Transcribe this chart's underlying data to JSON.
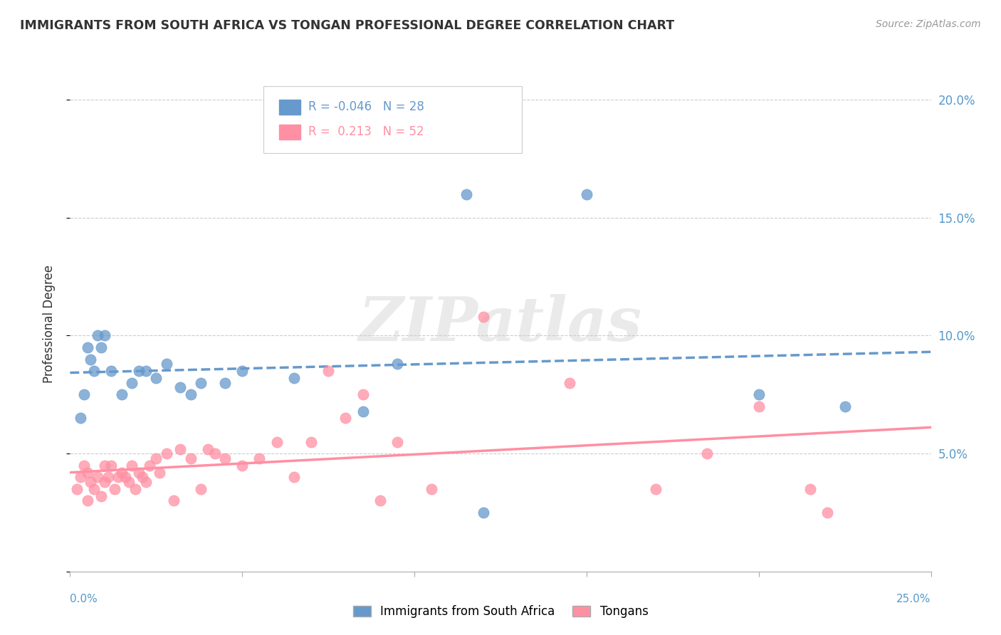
{
  "title": "IMMIGRANTS FROM SOUTH AFRICA VS TONGAN PROFESSIONAL DEGREE CORRELATION CHART",
  "source": "Source: ZipAtlas.com",
  "ylabel": "Professional Degree",
  "watermark": "ZIPatlas",
  "xlim": [
    0.0,
    25.0
  ],
  "ylim": [
    0.0,
    21.0
  ],
  "ytick_values": [
    0,
    5,
    10,
    15,
    20
  ],
  "ytick_labels": [
    "",
    "5.0%",
    "10.0%",
    "15.0%",
    "20.0%"
  ],
  "series1_name": "Immigrants from South Africa",
  "series1_color": "#6699cc",
  "series1_R": -0.046,
  "series1_N": 28,
  "series1_x": [
    0.3,
    0.5,
    0.7,
    0.9,
    1.0,
    1.2,
    1.5,
    1.8,
    2.0,
    2.2,
    2.5,
    2.8,
    3.2,
    3.5,
    3.8,
    4.5,
    5.0,
    6.5,
    8.5,
    9.5,
    11.5,
    15.0,
    20.0,
    22.5,
    12.0,
    0.4,
    0.6,
    0.8
  ],
  "series1_y": [
    6.5,
    9.5,
    8.5,
    9.5,
    10.0,
    8.5,
    7.5,
    8.0,
    8.5,
    8.5,
    8.2,
    8.8,
    7.8,
    7.5,
    8.0,
    8.0,
    8.5,
    8.2,
    6.8,
    8.8,
    16.0,
    16.0,
    7.5,
    7.0,
    2.5,
    7.5,
    9.0,
    10.0
  ],
  "series2_name": "Tongans",
  "series2_color": "#ff8fa3",
  "series2_R": 0.213,
  "series2_N": 52,
  "series2_x": [
    0.2,
    0.3,
    0.4,
    0.5,
    0.5,
    0.6,
    0.7,
    0.8,
    0.9,
    1.0,
    1.0,
    1.1,
    1.2,
    1.3,
    1.4,
    1.5,
    1.6,
    1.7,
    1.8,
    1.9,
    2.0,
    2.1,
    2.2,
    2.3,
    2.5,
    2.6,
    2.8,
    3.0,
    3.2,
    3.5,
    3.8,
    4.0,
    4.2,
    4.5,
    5.0,
    5.5,
    6.0,
    6.5,
    7.0,
    7.5,
    8.0,
    8.5,
    9.0,
    9.5,
    10.5,
    12.0,
    14.5,
    17.0,
    18.5,
    20.0,
    21.5,
    22.0
  ],
  "series2_y": [
    3.5,
    4.0,
    4.5,
    3.0,
    4.2,
    3.8,
    3.5,
    4.0,
    3.2,
    3.8,
    4.5,
    4.0,
    4.5,
    3.5,
    4.0,
    4.2,
    4.0,
    3.8,
    4.5,
    3.5,
    4.2,
    4.0,
    3.8,
    4.5,
    4.8,
    4.2,
    5.0,
    3.0,
    5.2,
    4.8,
    3.5,
    5.2,
    5.0,
    4.8,
    4.5,
    4.8,
    5.5,
    4.0,
    5.5,
    8.5,
    6.5,
    7.5,
    3.0,
    5.5,
    3.5,
    10.8,
    8.0,
    3.5,
    5.0,
    7.0,
    3.5,
    2.5
  ],
  "background_color": "#ffffff",
  "grid_color": "#cccccc",
  "title_color": "#333333",
  "source_color": "#999999",
  "yaxis_label_color": "#5599cc"
}
